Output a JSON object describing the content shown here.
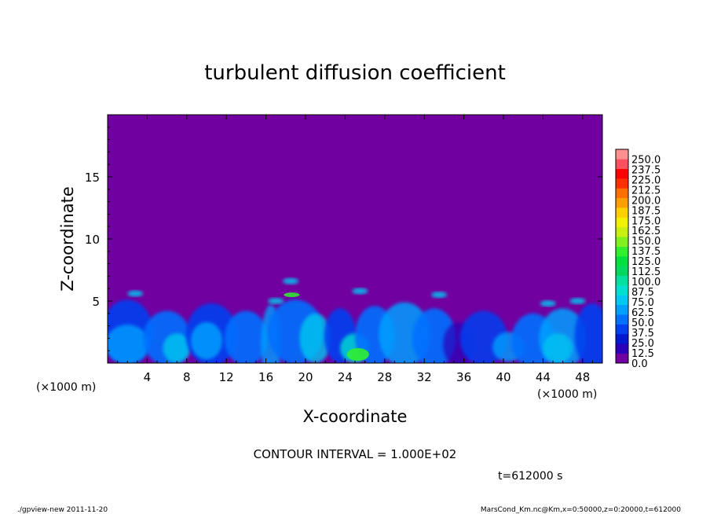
{
  "chart_data": {
    "type": "heatmap",
    "title": "turbulent diffusion coefficient",
    "xlabel": "X-coordinate",
    "ylabel": "Z-coordinate",
    "x_unit_label": "(×1000 m)",
    "z_unit_label": "(×1000 m)",
    "xlim": [
      0,
      50
    ],
    "ylim": [
      0,
      20
    ],
    "x_ticks": [
      4,
      8,
      12,
      16,
      20,
      24,
      28,
      32,
      36,
      40,
      44,
      48
    ],
    "y_ticks": [
      5,
      10,
      15
    ],
    "colorbar": {
      "levels": [
        "0.0",
        "12.5",
        "25.0",
        "37.5",
        "50.0",
        "62.5",
        "75.0",
        "87.5",
        "100.0",
        "112.5",
        "125.0",
        "137.5",
        "150.0",
        "162.5",
        "175.0",
        "187.5",
        "200.0",
        "212.5",
        "225.0",
        "237.5",
        "250.0"
      ],
      "colors": [
        "#7000a0",
        "#2a00b8",
        "#0018d0",
        "#0040f0",
        "#0070ff",
        "#00a0ff",
        "#00c8f0",
        "#00e0d0",
        "#00e0a0",
        "#00d860",
        "#00e040",
        "#30f030",
        "#80f020",
        "#c8f010",
        "#f0f000",
        "#ffd000",
        "#ffa000",
        "#ff7000",
        "#ff3000",
        "#ff0000",
        "#ff5060",
        "#ff9090"
      ]
    },
    "grid": false
  },
  "contour_interval_text": "CONTOUR INTERVAL = 1.000E+02",
  "time_label": "t=612000 s",
  "footer_left": "./gpview-new   2011-11-20",
  "footer_right": "MarsCond_Km.nc@Km,x=0:50000,z=0:20000,t=612000"
}
